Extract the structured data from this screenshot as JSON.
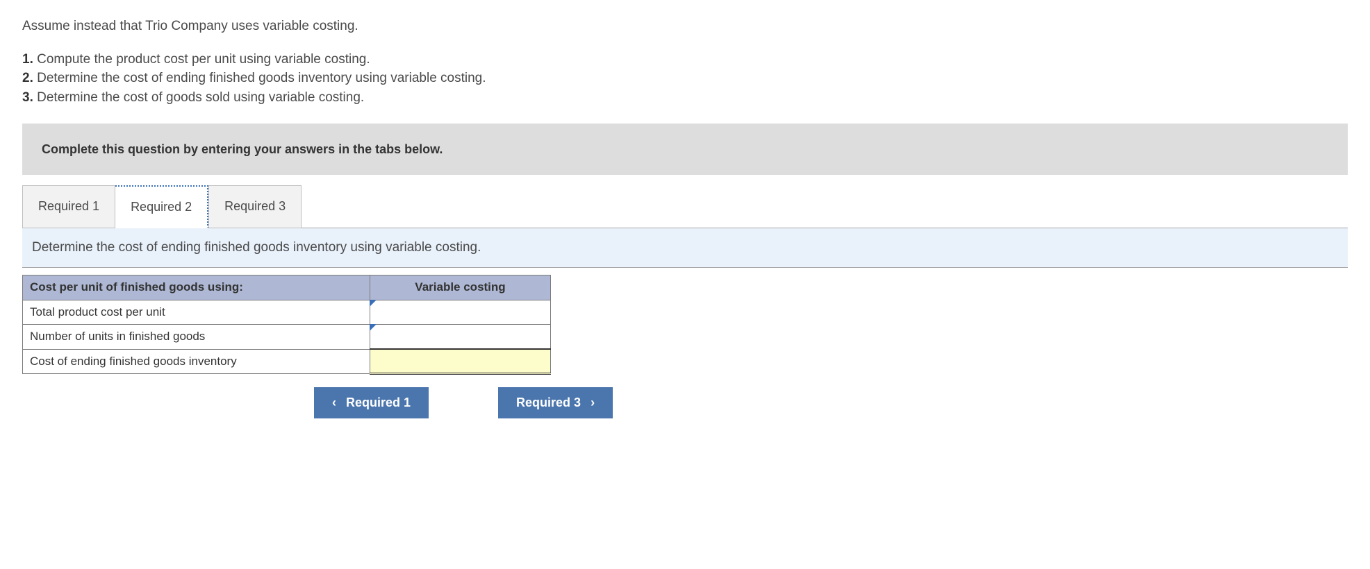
{
  "intro": "Assume instead that Trio Company uses variable costing.",
  "questions": [
    {
      "num": "1.",
      "text": "Compute the product cost per unit using variable costing."
    },
    {
      "num": "2.",
      "text": "Determine the cost of ending finished goods inventory using variable costing."
    },
    {
      "num": "3.",
      "text": "Determine the cost of goods sold using variable costing."
    }
  ],
  "instruction": "Complete this question by entering your answers in the tabs below.",
  "tabs": [
    {
      "label": "Required 1"
    },
    {
      "label": "Required 2"
    },
    {
      "label": "Required 3"
    }
  ],
  "active_tab_index": 1,
  "panel_text": "Determine the cost of ending finished goods inventory using variable costing.",
  "table": {
    "header_label": "Cost per unit of finished goods using:",
    "header_value": "Variable costing",
    "rows": [
      {
        "label": "Total product cost per unit",
        "value": "",
        "type": "input"
      },
      {
        "label": "Number of units in finished goods",
        "value": "",
        "type": "input"
      },
      {
        "label": "Cost of ending finished goods inventory",
        "value": "",
        "type": "total"
      }
    ]
  },
  "nav": {
    "prev": "Required 1",
    "next": "Required 3"
  },
  "colors": {
    "instruction_bg": "#dddddd",
    "panel_bg": "#e9f1fb",
    "th_bg": "#aeb8d4",
    "total_bg": "#fdfccb",
    "btn_bg": "#4a75ad",
    "accent": "#3a6fb7"
  }
}
